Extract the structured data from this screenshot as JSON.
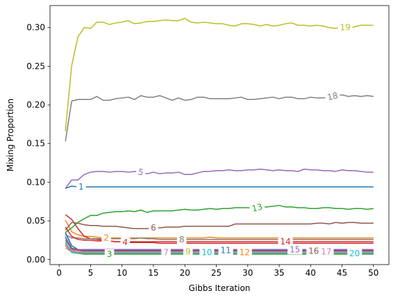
{
  "chart_data": {
    "type": "line",
    "xlabel": "Gibbs Iteration",
    "ylabel": "Mixing Proportion",
    "xlim": [
      -1.45,
      52.45
    ],
    "ylim": [
      -0.0065,
      0.3285
    ],
    "xticks": [
      "0",
      "5",
      "10",
      "15",
      "20",
      "25",
      "30",
      "35",
      "40",
      "45",
      "50"
    ],
    "yticks": [
      "0.00",
      "0.05",
      "0.10",
      "0.15",
      "0.20",
      "0.25",
      "0.30"
    ],
    "grid": false,
    "legend": "inline labels",
    "series": [
      {
        "name": "1",
        "color": "#1f77b4",
        "label_x": 3.5,
        "values": [
          0.092,
          0.095,
          0.094,
          0.094,
          0.094,
          0.094,
          0.094,
          0.094,
          0.094,
          0.094,
          0.094,
          0.094,
          0.094,
          0.094,
          0.094,
          0.094,
          0.094,
          0.094,
          0.094,
          0.094,
          0.094,
          0.094,
          0.094,
          0.094,
          0.094,
          0.094,
          0.094,
          0.094,
          0.094,
          0.094,
          0.094,
          0.094,
          0.094,
          0.094,
          0.094,
          0.094,
          0.094,
          0.094,
          0.094,
          0.094,
          0.094,
          0.094,
          0.094,
          0.094,
          0.094,
          0.094,
          0.094,
          0.094,
          0.094,
          0.094
        ]
      },
      {
        "name": "2",
        "color": "#ff7f0e",
        "label_x": 7.5,
        "values": [
          0.051,
          0.036,
          0.032,
          0.03,
          0.03,
          0.029,
          0.028,
          0.028,
          0.028,
          0.028,
          0.028,
          0.028,
          0.028,
          0.028,
          0.028,
          0.028,
          0.028,
          0.028,
          0.028,
          0.028,
          0.028,
          0.028,
          0.028,
          0.029,
          0.028,
          0.028,
          0.028,
          0.028,
          0.028,
          0.028,
          0.028,
          0.028,
          0.028,
          0.028,
          0.028,
          0.028,
          0.028,
          0.028,
          0.028,
          0.028,
          0.028,
          0.028,
          0.028,
          0.028,
          0.028,
          0.028,
          0.028,
          0.028,
          0.028,
          0.028
        ]
      },
      {
        "name": "3",
        "color": "#2ca02c",
        "label_x": 8.0,
        "values": [
          0.03,
          0.012,
          0.008,
          0.007,
          0.007,
          0.007,
          0.007,
          0.007,
          0.007,
          0.007,
          0.007,
          0.007,
          0.007,
          0.007,
          0.007,
          0.007,
          0.007,
          0.007,
          0.007,
          0.007,
          0.007,
          0.007,
          0.007,
          0.007,
          0.007,
          0.007,
          0.007,
          0.007,
          0.007,
          0.007,
          0.007,
          0.007,
          0.007,
          0.007,
          0.007,
          0.007,
          0.007,
          0.007,
          0.007,
          0.007,
          0.007,
          0.007,
          0.007,
          0.007,
          0.007,
          0.007,
          0.007,
          0.007,
          0.007,
          0.007
        ]
      },
      {
        "name": "4",
        "color": "#d62728",
        "label_x": 10.5,
        "values": [
          0.058,
          0.052,
          0.04,
          0.03,
          0.027,
          0.026,
          0.025,
          0.024,
          0.023,
          0.023,
          0.022,
          0.022,
          0.022,
          0.022,
          0.022,
          0.021,
          0.021,
          0.021,
          0.021,
          0.021,
          0.021,
          0.021,
          0.021,
          0.021,
          0.021,
          0.021,
          0.021,
          0.021,
          0.021,
          0.021,
          0.021,
          0.021,
          0.021,
          0.021,
          0.021,
          0.021,
          0.021,
          0.021,
          0.021,
          0.021,
          0.021,
          0.021,
          0.021,
          0.021,
          0.021,
          0.021,
          0.021,
          0.021,
          0.021,
          0.021
        ]
      },
      {
        "name": "5",
        "color": "#9467bd",
        "label_x": 13.0,
        "values": [
          0.092,
          0.103,
          0.103,
          0.11,
          0.113,
          0.114,
          0.114,
          0.113,
          0.114,
          0.114,
          0.113,
          0.114,
          0.113,
          0.111,
          0.113,
          0.111,
          0.112,
          0.112,
          0.113,
          0.11,
          0.11,
          0.112,
          0.114,
          0.114,
          0.115,
          0.115,
          0.116,
          0.115,
          0.115,
          0.116,
          0.116,
          0.117,
          0.116,
          0.115,
          0.116,
          0.115,
          0.115,
          0.114,
          0.117,
          0.116,
          0.116,
          0.115,
          0.115,
          0.114,
          0.116,
          0.115,
          0.115,
          0.114,
          0.113,
          0.113
        ]
      },
      {
        "name": "6",
        "color": "#8c564b",
        "label_x": 15.0,
        "values": [
          0.038,
          0.048,
          0.047,
          0.045,
          0.044,
          0.044,
          0.043,
          0.043,
          0.043,
          0.042,
          0.041,
          0.04,
          0.04,
          0.04,
          0.041,
          0.041,
          0.042,
          0.042,
          0.042,
          0.043,
          0.043,
          0.043,
          0.043,
          0.043,
          0.043,
          0.043,
          0.043,
          0.046,
          0.046,
          0.046,
          0.046,
          0.046,
          0.046,
          0.046,
          0.046,
          0.046,
          0.046,
          0.046,
          0.046,
          0.046,
          0.047,
          0.047,
          0.046,
          0.048,
          0.047,
          0.048,
          0.048,
          0.047,
          0.047,
          0.047
        ]
      },
      {
        "name": "7",
        "color": "#e377c2",
        "label_x": 17.0,
        "values": [
          0.015,
          0.01,
          0.009,
          0.009,
          0.009,
          0.009,
          0.009,
          0.009,
          0.009,
          0.009,
          0.009,
          0.009,
          0.009,
          0.009,
          0.009,
          0.009,
          0.009,
          0.009,
          0.009,
          0.009,
          0.009,
          0.009,
          0.009,
          0.009,
          0.009,
          0.009,
          0.009,
          0.009,
          0.009,
          0.009,
          0.009,
          0.009,
          0.009,
          0.009,
          0.009,
          0.009,
          0.009,
          0.009,
          0.009,
          0.009,
          0.009,
          0.009,
          0.009,
          0.009,
          0.009,
          0.009,
          0.009,
          0.009,
          0.009,
          0.009
        ]
      },
      {
        "name": "8",
        "color": "#7f7f7f",
        "label_x": 19.5,
        "values": [
          0.032,
          0.028,
          0.028,
          0.027,
          0.027,
          0.027,
          0.027,
          0.027,
          0.027,
          0.027,
          0.027,
          0.027,
          0.028,
          0.027,
          0.027,
          0.026,
          0.026,
          0.026,
          0.026,
          0.026,
          0.026,
          0.026,
          0.026,
          0.026,
          0.026,
          0.026,
          0.026,
          0.026,
          0.026,
          0.026,
          0.026,
          0.026,
          0.026,
          0.026,
          0.026,
          0.026,
          0.026,
          0.026,
          0.026,
          0.026,
          0.026,
          0.026,
          0.026,
          0.026,
          0.026,
          0.026,
          0.026,
          0.026,
          0.026,
          0.026
        ]
      },
      {
        "name": "9",
        "color": "#bcbd22",
        "label_x": 20.5,
        "values": [
          0.02,
          0.011,
          0.01,
          0.01,
          0.01,
          0.01,
          0.01,
          0.01,
          0.01,
          0.01,
          0.01,
          0.01,
          0.01,
          0.01,
          0.01,
          0.01,
          0.01,
          0.01,
          0.01,
          0.01,
          0.01,
          0.01,
          0.01,
          0.01,
          0.01,
          0.01,
          0.01,
          0.01,
          0.01,
          0.01,
          0.01,
          0.01,
          0.01,
          0.01,
          0.01,
          0.01,
          0.01,
          0.01,
          0.01,
          0.01,
          0.01,
          0.01,
          0.01,
          0.01,
          0.01,
          0.01,
          0.01,
          0.01,
          0.01,
          0.01
        ]
      },
      {
        "name": "10",
        "color": "#17becf",
        "label_x": 23.5,
        "values": [
          0.028,
          0.013,
          0.01,
          0.009,
          0.009,
          0.009,
          0.009,
          0.009,
          0.009,
          0.009,
          0.009,
          0.009,
          0.009,
          0.009,
          0.009,
          0.009,
          0.009,
          0.009,
          0.009,
          0.009,
          0.009,
          0.009,
          0.009,
          0.009,
          0.009,
          0.009,
          0.009,
          0.009,
          0.009,
          0.009,
          0.009,
          0.009,
          0.009,
          0.009,
          0.009,
          0.009,
          0.009,
          0.009,
          0.009,
          0.009,
          0.009,
          0.009,
          0.009,
          0.009,
          0.009,
          0.009,
          0.009,
          0.009,
          0.009,
          0.009
        ]
      },
      {
        "name": "11",
        "color": "#1f77b4",
        "label_x": 26.5,
        "values": [
          0.035,
          0.018,
          0.013,
          0.012,
          0.012,
          0.012,
          0.012,
          0.012,
          0.012,
          0.012,
          0.012,
          0.012,
          0.012,
          0.012,
          0.012,
          0.012,
          0.012,
          0.012,
          0.012,
          0.012,
          0.012,
          0.012,
          0.012,
          0.012,
          0.012,
          0.012,
          0.012,
          0.012,
          0.012,
          0.012,
          0.012,
          0.012,
          0.012,
          0.012,
          0.012,
          0.012,
          0.012,
          0.012,
          0.012,
          0.012,
          0.012,
          0.012,
          0.012,
          0.012,
          0.012,
          0.012,
          0.012,
          0.012,
          0.012,
          0.012
        ]
      },
      {
        "name": "12",
        "color": "#ff7f0e",
        "label_x": 29.5,
        "values": [
          0.018,
          0.01,
          0.009,
          0.009,
          0.009,
          0.009,
          0.009,
          0.009,
          0.009,
          0.009,
          0.009,
          0.009,
          0.009,
          0.009,
          0.009,
          0.009,
          0.009,
          0.009,
          0.009,
          0.009,
          0.009,
          0.009,
          0.009,
          0.009,
          0.009,
          0.009,
          0.009,
          0.009,
          0.009,
          0.009,
          0.009,
          0.009,
          0.009,
          0.009,
          0.009,
          0.009,
          0.009,
          0.009,
          0.009,
          0.009,
          0.009,
          0.009,
          0.009,
          0.009,
          0.009,
          0.009,
          0.009,
          0.009,
          0.009,
          0.009
        ]
      },
      {
        "name": "13",
        "color": "#2ca02c",
        "label_x": 31.5,
        "values": [
          0.035,
          0.041,
          0.048,
          0.053,
          0.057,
          0.057,
          0.06,
          0.061,
          0.062,
          0.062,
          0.063,
          0.062,
          0.064,
          0.061,
          0.063,
          0.063,
          0.063,
          0.063,
          0.064,
          0.065,
          0.064,
          0.064,
          0.065,
          0.066,
          0.065,
          0.066,
          0.066,
          0.067,
          0.067,
          0.067,
          0.066,
          0.068,
          0.068,
          0.069,
          0.07,
          0.068,
          0.068,
          0.067,
          0.067,
          0.066,
          0.066,
          0.067,
          0.067,
          0.066,
          0.066,
          0.065,
          0.066,
          0.066,
          0.065,
          0.066
        ]
      },
      {
        "name": "14",
        "color": "#d62728",
        "label_x": 36.0,
        "values": [
          0.042,
          0.03,
          0.026,
          0.025,
          0.025,
          0.024,
          0.024,
          0.024,
          0.023,
          0.023,
          0.023,
          0.023,
          0.023,
          0.023,
          0.023,
          0.023,
          0.023,
          0.023,
          0.023,
          0.023,
          0.023,
          0.023,
          0.023,
          0.023,
          0.023,
          0.023,
          0.023,
          0.023,
          0.023,
          0.023,
          0.023,
          0.023,
          0.023,
          0.023,
          0.023,
          0.023,
          0.023,
          0.023,
          0.023,
          0.023,
          0.023,
          0.023,
          0.023,
          0.023,
          0.023,
          0.023,
          0.023,
          0.023,
          0.023,
          0.023
        ]
      },
      {
        "name": "15",
        "color": "#9467bd",
        "label_x": 37.5,
        "values": [
          0.03,
          0.015,
          0.013,
          0.013,
          0.013,
          0.013,
          0.013,
          0.013,
          0.013,
          0.013,
          0.013,
          0.013,
          0.013,
          0.013,
          0.013,
          0.013,
          0.013,
          0.013,
          0.013,
          0.013,
          0.013,
          0.013,
          0.013,
          0.013,
          0.013,
          0.013,
          0.013,
          0.013,
          0.013,
          0.013,
          0.013,
          0.013,
          0.013,
          0.013,
          0.013,
          0.013,
          0.013,
          0.013,
          0.013,
          0.013,
          0.013,
          0.013,
          0.013,
          0.013,
          0.013,
          0.013,
          0.013,
          0.013,
          0.013,
          0.013
        ]
      },
      {
        "name": "16",
        "color": "#8c564b",
        "label_x": 40.5,
        "values": [
          0.025,
          0.014,
          0.012,
          0.011,
          0.011,
          0.011,
          0.011,
          0.011,
          0.011,
          0.011,
          0.011,
          0.011,
          0.011,
          0.011,
          0.011,
          0.011,
          0.011,
          0.011,
          0.011,
          0.011,
          0.011,
          0.011,
          0.011,
          0.011,
          0.011,
          0.011,
          0.011,
          0.011,
          0.011,
          0.011,
          0.011,
          0.011,
          0.011,
          0.011,
          0.011,
          0.011,
          0.011,
          0.011,
          0.011,
          0.011,
          0.011,
          0.011,
          0.011,
          0.011,
          0.011,
          0.011,
          0.011,
          0.011,
          0.011,
          0.011
        ]
      },
      {
        "name": "17",
        "color": "#e377c2",
        "label_x": 42.5,
        "values": [
          0.02,
          0.012,
          0.01,
          0.01,
          0.01,
          0.01,
          0.01,
          0.01,
          0.01,
          0.01,
          0.01,
          0.01,
          0.01,
          0.01,
          0.01,
          0.01,
          0.01,
          0.01,
          0.01,
          0.01,
          0.01,
          0.01,
          0.01,
          0.01,
          0.01,
          0.01,
          0.01,
          0.01,
          0.01,
          0.01,
          0.01,
          0.01,
          0.01,
          0.01,
          0.01,
          0.01,
          0.01,
          0.01,
          0.01,
          0.01,
          0.01,
          0.01,
          0.01,
          0.01,
          0.01,
          0.01,
          0.01,
          0.01,
          0.01,
          0.01
        ]
      },
      {
        "name": "18",
        "color": "#7f7f7f",
        "label_x": 43.5,
        "values": [
          0.153,
          0.205,
          0.207,
          0.207,
          0.207,
          0.211,
          0.206,
          0.206,
          0.208,
          0.209,
          0.21,
          0.207,
          0.212,
          0.21,
          0.21,
          0.212,
          0.209,
          0.206,
          0.209,
          0.206,
          0.207,
          0.21,
          0.21,
          0.208,
          0.208,
          0.208,
          0.208,
          0.209,
          0.21,
          0.207,
          0.207,
          0.208,
          0.209,
          0.21,
          0.208,
          0.21,
          0.21,
          0.208,
          0.208,
          0.21,
          0.209,
          0.209,
          0.21,
          0.212,
          0.213,
          0.211,
          0.212,
          0.211,
          0.212,
          0.211
        ]
      },
      {
        "name": "19",
        "color": "#bcbd22",
        "label_x": 45.5,
        "values": [
          0.166,
          0.251,
          0.288,
          0.3,
          0.299,
          0.307,
          0.307,
          0.304,
          0.306,
          0.307,
          0.309,
          0.305,
          0.306,
          0.308,
          0.308,
          0.309,
          0.31,
          0.309,
          0.309,
          0.312,
          0.307,
          0.306,
          0.307,
          0.306,
          0.305,
          0.305,
          0.303,
          0.302,
          0.305,
          0.305,
          0.304,
          0.302,
          0.304,
          0.302,
          0.303,
          0.305,
          0.306,
          0.303,
          0.303,
          0.302,
          0.303,
          0.302,
          0.3,
          0.299,
          0.3,
          0.3,
          0.301,
          0.303,
          0.303,
          0.303
        ]
      },
      {
        "name": "20",
        "color": "#17becf",
        "label_x": 47.0,
        "values": [
          0.022,
          0.009,
          0.008,
          0.008,
          0.008,
          0.008,
          0.008,
          0.008,
          0.008,
          0.008,
          0.008,
          0.008,
          0.008,
          0.008,
          0.008,
          0.008,
          0.008,
          0.008,
          0.008,
          0.008,
          0.008,
          0.008,
          0.008,
          0.008,
          0.008,
          0.008,
          0.008,
          0.008,
          0.008,
          0.008,
          0.008,
          0.008,
          0.008,
          0.008,
          0.008,
          0.008,
          0.008,
          0.008,
          0.008,
          0.008,
          0.008,
          0.008,
          0.008,
          0.008,
          0.008,
          0.008,
          0.008,
          0.008,
          0.008,
          0.008
        ]
      }
    ]
  }
}
